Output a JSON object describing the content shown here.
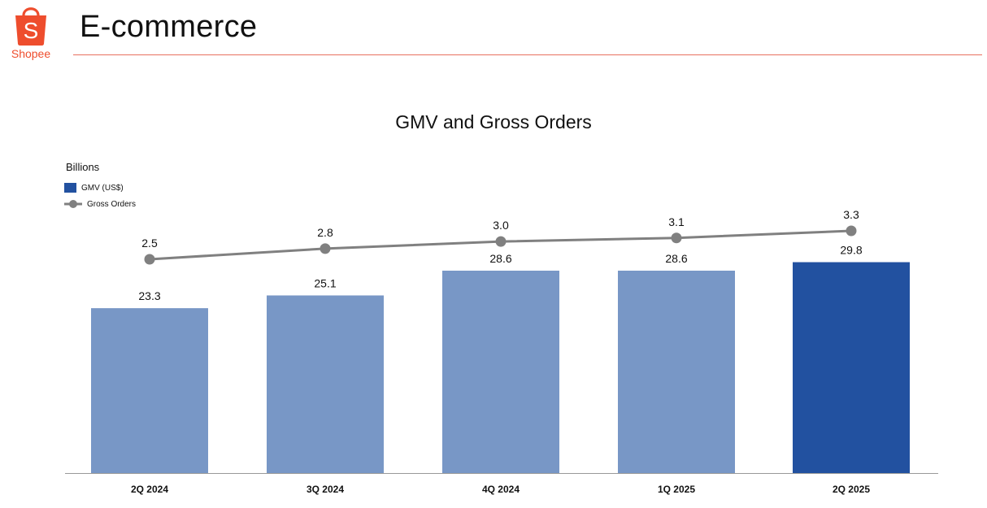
{
  "header": {
    "title": "E-commerce",
    "logo_text": "Shopee",
    "logo_letter": "S"
  },
  "colors": {
    "brand": "#ee4d2d",
    "bar_normal": "#7897c6",
    "bar_highlight": "#2251a0",
    "line": "#808080",
    "axis": "#999999"
  },
  "chart_data": {
    "type": "bar",
    "title": "GMV and Gross Orders",
    "unit_label": "Billions",
    "categories": [
      "2Q 2024",
      "3Q 2024",
      "4Q 2024",
      "1Q 2025",
      "2Q 2025"
    ],
    "highlight_index": 4,
    "ylim": [
      0,
      34
    ],
    "grid": false,
    "legend_placement": "top-left",
    "series": [
      {
        "name": "GMV (US$)",
        "type": "bar",
        "values": [
          23.3,
          25.1,
          28.6,
          28.6,
          29.8
        ],
        "labels": [
          "23.3",
          "25.1",
          "28.6",
          "28.6",
          "29.8"
        ]
      },
      {
        "name": "Gross Orders",
        "type": "line",
        "values": [
          2.5,
          2.8,
          3.0,
          3.1,
          3.3
        ],
        "labels": [
          "2.5",
          "2.8",
          "3.0",
          "3.1",
          "3.3"
        ],
        "ylim": [
          0,
          4.4
        ]
      }
    ]
  }
}
